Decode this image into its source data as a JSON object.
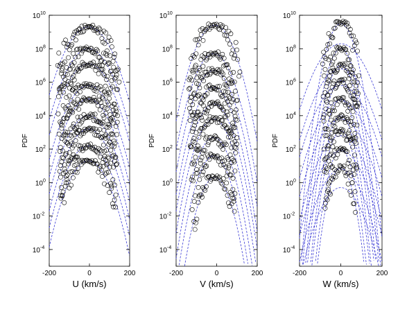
{
  "chart_data": [
    {
      "type": "scatter",
      "xlabel": "U (km/s)",
      "ylabel": "PDF",
      "xlim": [
        -200,
        200
      ],
      "xticks": [
        -200,
        0,
        200
      ],
      "ylim_log10": [
        -5,
        10
      ],
      "ytick_exponents": [
        -4,
        -2,
        0,
        2,
        4,
        6,
        8,
        10
      ],
      "log_scale_y": true,
      "grid": false,
      "legend": "none",
      "colors": {
        "marker": "#000000",
        "fit_line": "#3b3bd6"
      },
      "series": [
        {
          "peak_x": -5,
          "peak_log10": 1.3,
          "sigma": 40,
          "fit_curves": 1
        },
        {
          "peak_x": -5,
          "peak_log10": 2.2,
          "sigma": 41,
          "fit_curves": 1
        },
        {
          "peak_x": -5,
          "peak_log10": 3.2,
          "sigma": 41,
          "fit_curves": 1
        },
        {
          "peak_x": -5,
          "peak_log10": 4.0,
          "sigma": 42,
          "fit_curves": 1
        },
        {
          "peak_x": -5,
          "peak_log10": 5.0,
          "sigma": 42,
          "fit_curves": 1
        },
        {
          "peak_x": -5,
          "peak_log10": 5.8,
          "sigma": 43,
          "fit_curves": 1
        },
        {
          "peak_x": -5,
          "peak_log10": 7.1,
          "sigma": 44,
          "fit_curves": 1
        },
        {
          "peak_x": -5,
          "peak_log10": 8.0,
          "sigma": 44,
          "fit_curves": 1
        },
        {
          "peak_x": -5,
          "peak_log10": 9.3,
          "sigma": 45,
          "fit_curves": 1
        }
      ]
    },
    {
      "type": "scatter",
      "xlabel": "V (km/s)",
      "ylabel": "PDF",
      "xlim": [
        -200,
        200
      ],
      "xticks": [
        -200,
        0,
        200
      ],
      "ylim_log10": [
        -5,
        10
      ],
      "ytick_exponents": [
        -4,
        -2,
        0,
        2,
        4,
        6,
        8,
        10
      ],
      "log_scale_y": true,
      "grid": false,
      "legend": "none",
      "colors": {
        "marker": "#000000",
        "fit_line": "#3b3bd6"
      },
      "series": [
        {
          "peak_x": -10,
          "peak_log10": 0.3,
          "sigma": 30,
          "fit_curves": 1
        },
        {
          "peak_x": -15,
          "peak_log10": 1.6,
          "sigma": 31,
          "fit_curves": 1
        },
        {
          "peak_x": -15,
          "peak_log10": 2.7,
          "sigma": 32,
          "fit_curves": 1
        },
        {
          "peak_x": -15,
          "peak_log10": 3.8,
          "sigma": 33,
          "fit_curves": 1
        },
        {
          "peak_x": -15,
          "peak_log10": 4.7,
          "sigma": 34,
          "fit_curves": 1
        },
        {
          "peak_x": -15,
          "peak_log10": 5.7,
          "sigma": 34,
          "fit_curves": 1
        },
        {
          "peak_x": -15,
          "peak_log10": 6.7,
          "sigma": 35,
          "fit_curves": 1
        },
        {
          "peak_x": -15,
          "peak_log10": 7.7,
          "sigma": 36,
          "fit_curves": 1
        },
        {
          "peak_x": -10,
          "peak_log10": 9.4,
          "sigma": 37,
          "fit_curves": 1
        }
      ]
    },
    {
      "type": "scatter",
      "xlabel": "W (km/s)",
      "ylabel": "PDF",
      "xlim": [
        -200,
        200
      ],
      "xticks": [
        -200,
        0,
        200
      ],
      "ylim_log10": [
        -5,
        10
      ],
      "ytick_exponents": [
        -4,
        -2,
        0,
        2,
        4,
        6,
        8,
        10
      ],
      "log_scale_y": true,
      "grid": false,
      "legend": "none",
      "colors": {
        "marker": "#000000",
        "fit_line": "#3b3bd6"
      },
      "series": [
        {
          "peak_x": 0,
          "peak_log10": 0.9,
          "sigma": 22,
          "fit_curves": 2
        },
        {
          "peak_x": 0,
          "peak_log10": 2.0,
          "sigma": 22,
          "fit_curves": 2
        },
        {
          "peak_x": 0,
          "peak_log10": 3.1,
          "sigma": 23,
          "fit_curves": 2
        },
        {
          "peak_x": 0,
          "peak_log10": 4.0,
          "sigma": 23,
          "fit_curves": 2
        },
        {
          "peak_x": 0,
          "peak_log10": 5.0,
          "sigma": 24,
          "fit_curves": 2
        },
        {
          "peak_x": 0,
          "peak_log10": 6.1,
          "sigma": 24,
          "fit_curves": 2
        },
        {
          "peak_x": 0,
          "peak_log10": 7.0,
          "sigma": 25,
          "fit_curves": 2
        },
        {
          "peak_x": 0,
          "peak_log10": 8.0,
          "sigma": 25,
          "fit_curves": 2
        },
        {
          "peak_x": 0,
          "peak_log10": 9.5,
          "sigma": 26,
          "fit_curves": 2
        }
      ]
    }
  ]
}
